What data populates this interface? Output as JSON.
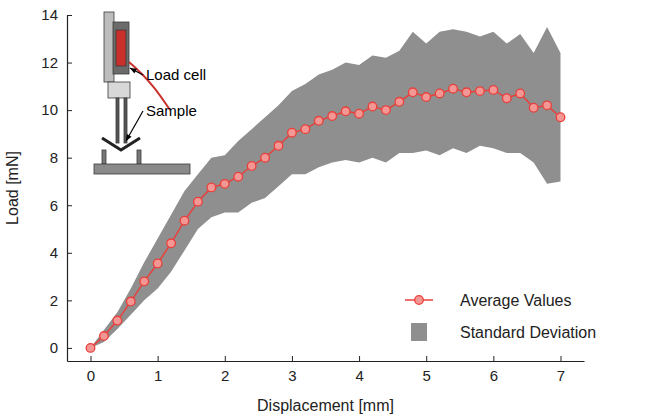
{
  "chart_data": {
    "type": "line",
    "x_label": "Displacement [mm]",
    "y_label": "Load [mN]",
    "x": [
      0,
      0.2,
      0.4,
      0.6,
      0.8,
      1.0,
      1.2,
      1.4,
      1.6,
      1.8,
      2.0,
      2.2,
      2.4,
      2.6,
      2.8,
      3.0,
      3.2,
      3.4,
      3.6,
      3.8,
      4.0,
      4.2,
      4.4,
      4.6,
      4.8,
      5.0,
      5.2,
      5.4,
      5.6,
      5.8,
      6.0,
      6.2,
      6.4,
      6.6,
      6.8,
      7.0
    ],
    "series": [
      {
        "name": "Average Values",
        "color": "#e8413c",
        "marker": "circle",
        "line_style": "solid",
        "values": [
          0,
          0.5,
          1.15,
          1.95,
          2.8,
          3.55,
          4.4,
          5.35,
          6.15,
          6.75,
          6.9,
          7.2,
          7.65,
          8.0,
          8.5,
          9.05,
          9.2,
          9.55,
          9.75,
          9.95,
          9.85,
          10.15,
          10.0,
          10.35,
          10.75,
          10.55,
          10.7,
          10.9,
          10.75,
          10.8,
          10.85,
          10.5,
          10.7,
          10.1,
          10.2,
          9.7
        ]
      }
    ],
    "band": {
      "name": "Standard Deviation",
      "color": "#8f8f8f",
      "values": [
        0,
        0.25,
        0.35,
        0.55,
        0.8,
        1.05,
        1.2,
        1.25,
        1.15,
        1.25,
        1.2,
        1.5,
        1.55,
        1.7,
        1.7,
        1.75,
        1.9,
        1.95,
        1.95,
        2.05,
        2.05,
        2.15,
        2.2,
        2.15,
        2.55,
        2.25,
        2.6,
        2.5,
        2.55,
        2.3,
        2.45,
        2.3,
        2.5,
        2.3,
        3.3,
        2.7
      ]
    },
    "annotations": [
      {
        "text": "Load cell"
      },
      {
        "text": "Sample"
      }
    ],
    "xlim": [
      -0.35,
      7.35
    ],
    "xticks": [
      0,
      1,
      2,
      3,
      4,
      5,
      6,
      7
    ],
    "ylim": [
      -0.55,
      14
    ],
    "yticks": [
      0,
      2,
      4,
      6,
      8,
      10,
      12,
      14
    ],
    "grid": false,
    "legend": "lower right"
  }
}
